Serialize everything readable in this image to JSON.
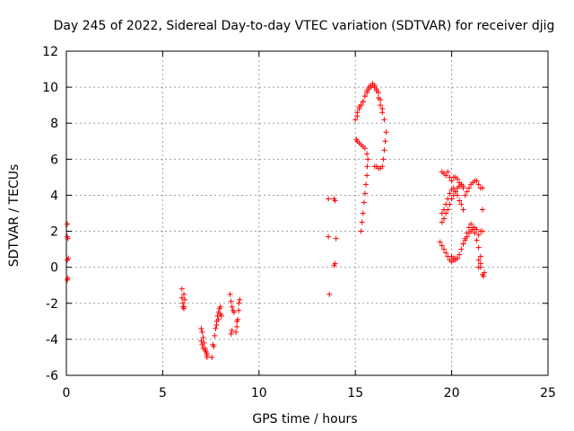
{
  "chart_data": {
    "type": "scatter",
    "title": "Day 245 of 2022, Sidereal Day-to-day VTEC variation (SDTVAR) for receiver djig",
    "xlabel": "GPS time / hours",
    "ylabel": "SDTVAR / TECUs",
    "xlim": [
      0,
      25
    ],
    "ylim": [
      -6,
      12
    ],
    "xticks": [
      0,
      5,
      10,
      15,
      20,
      25
    ],
    "yticks": [
      -6,
      -4,
      -2,
      0,
      2,
      4,
      6,
      8,
      10,
      12
    ],
    "grid": true,
    "marker": "+",
    "series": [
      {
        "color": "#ff0000",
        "x": [
          0.05,
          0.05,
          0.08,
          0.1,
          0.05,
          0.08,
          0.05,
          6.0,
          6.0,
          6.05,
          6.1,
          6.1,
          6.05,
          6.15,
          6.1,
          7.0,
          7.05,
          7.1,
          7.15,
          7.2,
          7.25,
          7.3,
          7.0,
          7.05,
          7.1,
          7.2,
          7.3,
          7.3,
          7.6,
          7.55,
          7.65,
          7.7,
          7.75,
          7.8,
          7.85,
          7.9,
          7.95,
          8.0,
          8.0,
          7.9,
          7.8,
          8.05,
          8.5,
          8.55,
          8.6,
          8.65,
          8.7,
          8.6,
          8.55,
          8.8,
          8.85,
          8.9,
          8.95,
          9.0,
          8.85,
          8.95,
          13.6,
          13.6,
          13.65,
          13.9,
          13.95,
          14.0,
          13.95,
          13.9,
          15.0,
          15.1,
          15.2,
          15.3,
          15.4,
          15.5,
          15.6,
          15.7,
          15.8,
          15.9,
          16.0,
          16.1,
          16.2,
          16.3,
          16.4,
          16.5,
          16.6,
          15.1,
          15.2,
          15.3,
          15.4,
          15.5,
          15.6,
          15.7,
          15.8,
          15.9,
          16.0,
          16.1,
          16.2,
          16.3,
          16.4,
          15.05,
          15.1,
          15.2,
          15.3,
          15.4,
          15.5,
          15.6,
          15.65,
          15.3,
          15.35,
          15.4,
          15.45,
          15.5,
          15.55,
          15.6,
          15.62,
          16.0,
          16.1,
          16.2,
          16.3,
          16.4,
          16.45,
          16.5,
          16.55,
          19.5,
          19.6,
          19.7,
          19.8,
          19.9,
          20.0,
          20.1,
          20.2,
          20.3,
          20.4,
          20.5,
          20.6,
          19.5,
          19.6,
          19.7,
          19.8,
          19.9,
          20.0,
          20.1,
          20.2,
          20.3,
          20.4,
          20.5,
          20.6,
          19.5,
          19.6,
          19.7,
          19.8,
          19.9,
          20.0,
          20.1,
          20.2,
          20.3,
          20.4,
          20.5,
          20.6,
          20.7,
          20.8,
          20.9,
          21.0,
          21.1,
          21.2,
          21.3,
          21.4,
          21.5,
          20.0,
          20.1,
          20.2,
          20.3,
          20.4,
          20.5,
          20.6,
          20.7,
          20.8,
          20.9,
          21.0,
          21.1,
          21.2,
          21.3,
          21.4,
          21.5,
          19.4,
          19.5,
          19.6,
          19.7,
          19.8,
          19.9,
          20.0,
          20.1,
          20.2,
          20.6,
          20.7,
          20.8,
          20.9,
          21.0,
          21.1,
          21.2,
          21.3,
          21.4,
          21.5,
          21.6,
          21.6,
          21.6,
          21.5,
          21.4
        ],
        "y": [
          2.4,
          1.7,
          1.6,
          0.5,
          0.4,
          -0.6,
          -0.7,
          -1.2,
          -1.7,
          -2.2,
          -2.3,
          -1.5,
          -2.0,
          -1.8,
          -2.2,
          -3.4,
          -3.6,
          -3.9,
          -4.2,
          -4.5,
          -4.7,
          -4.9,
          -4.1,
          -4.3,
          -4.5,
          -4.6,
          -5.0,
          -4.8,
          -4.3,
          -5.0,
          -4.4,
          -3.8,
          -3.4,
          -3.0,
          -2.7,
          -2.5,
          -2.3,
          -2.2,
          -2.6,
          -2.9,
          -3.2,
          -2.7,
          -1.5,
          -1.9,
          -2.2,
          -2.4,
          -2.5,
          -3.5,
          -3.7,
          -3.6,
          -3.3,
          -2.9,
          -2.4,
          -1.8,
          -3.0,
          -2.0,
          3.8,
          1.7,
          -1.5,
          3.8,
          3.7,
          1.6,
          0.2,
          0.1,
          8.2,
          8.6,
          8.9,
          9.0,
          9.2,
          9.5,
          9.8,
          10.0,
          10.1,
          10.1,
          10.0,
          9.9,
          9.7,
          9.3,
          8.8,
          8.2,
          7.5,
          8.4,
          8.8,
          9.0,
          9.2,
          9.5,
          9.7,
          9.9,
          10.0,
          10.2,
          10.1,
          9.8,
          9.4,
          9.0,
          8.6,
          7.1,
          7.0,
          6.9,
          6.8,
          6.7,
          6.6,
          6.3,
          6.0,
          2.0,
          2.5,
          3.0,
          3.6,
          4.1,
          4.6,
          5.1,
          5.6,
          5.6,
          5.6,
          5.5,
          5.5,
          5.6,
          6.0,
          6.5,
          7.0,
          5.3,
          5.2,
          5.1,
          5.3,
          5.0,
          4.8,
          5.0,
          5.0,
          4.9,
          4.7,
          4.6,
          4.5,
          3.0,
          3.2,
          3.5,
          3.8,
          4.1,
          4.3,
          4.4,
          4.2,
          4.0,
          3.7,
          3.5,
          3.2,
          2.5,
          2.7,
          3.0,
          3.2,
          3.5,
          3.8,
          4.0,
          4.2,
          4.4,
          4.5,
          4.6,
          4.4,
          4.0,
          4.2,
          4.4,
          4.6,
          4.7,
          4.8,
          4.8,
          4.6,
          4.4,
          0.6,
          0.5,
          0.4,
          0.5,
          0.7,
          1.0,
          1.3,
          1.6,
          1.9,
          2.2,
          2.4,
          2.2,
          1.9,
          1.5,
          1.1,
          0.6,
          1.4,
          1.2,
          1.0,
          0.8,
          0.6,
          0.4,
          0.3,
          0.4,
          0.5,
          1.3,
          1.5,
          1.7,
          1.9,
          2.0,
          2.1,
          2.2,
          2.1,
          1.8,
          2.0,
          2.0,
          4.4,
          3.2,
          0.2,
          0.0
        ]
      },
      {
        "color": "#ff0000",
        "x": [
          21.4,
          21.5,
          21.6,
          21.65,
          21.7
        ],
        "y": [
          0.4,
          0.0,
          -0.4,
          -0.5,
          -0.3
        ]
      }
    ]
  }
}
